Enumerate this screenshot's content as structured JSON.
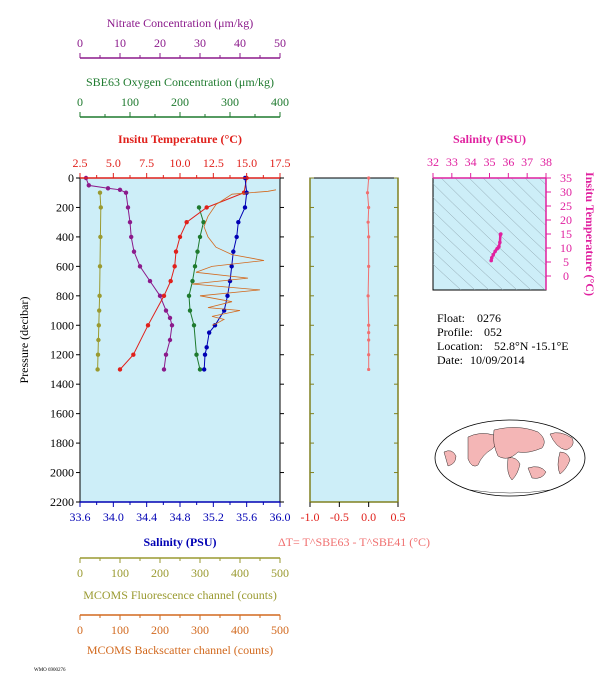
{
  "info": {
    "float_label": "Float:",
    "float_value": "0276",
    "profile_label": "Profile:",
    "profile_value": "052",
    "location_label": "Location:",
    "location_value": "52.8°N  -15.1°E",
    "date_label": "Date:",
    "date_value": "10/09/2014",
    "footer": "WMO 6900276"
  },
  "colors": {
    "nitrate": "#8b1a8b",
    "oxygen": "#1e7a2e",
    "temperature": "#e0201b",
    "salinity": "#0000b4",
    "fluorescence": "#9a9a30",
    "backscatter": "#d2691e",
    "delta_t": "#f07070",
    "ts": "#e0209f",
    "panel_bg": "#cdeef8"
  },
  "chart_data": [
    {
      "type": "line",
      "panel": "main-profile",
      "ylabel": "Pressure (decibar)",
      "ylim": [
        2200,
        0
      ],
      "yticks": [
        0,
        200,
        400,
        600,
        800,
        1000,
        1200,
        1400,
        1600,
        1800,
        2000,
        2200
      ],
      "axes": [
        {
          "key": "nitrate",
          "label": "Nitrate Concentration (μm/kg)",
          "position": "top-1",
          "range": [
            0,
            50
          ],
          "ticks": [
            0,
            10,
            20,
            30,
            40,
            50
          ]
        },
        {
          "key": "oxygen",
          "label": "SBE63 Oxygen Concentration (μm/kg)",
          "position": "top-2",
          "range": [
            0,
            400
          ],
          "ticks": [
            0,
            100,
            200,
            300,
            400
          ]
        },
        {
          "key": "temperature",
          "label": "Insitu Temperature (°C)",
          "position": "top-3",
          "range": [
            2.5,
            17.5
          ],
          "ticks": [
            "2.5",
            "5.0",
            "7.5",
            "10.0",
            "12.5",
            "15.0",
            "17.5"
          ]
        },
        {
          "key": "salinity",
          "label": "Salinity (PSU)",
          "position": "bottom-1",
          "range": [
            33.6,
            36.0
          ],
          "ticks": [
            "33.6",
            "34.0",
            "34.4",
            "34.8",
            "35.2",
            "35.6",
            "36.0"
          ]
        },
        {
          "key": "fluorescence",
          "label": "MCOMS Fluorescence channel (counts)",
          "position": "bottom-2",
          "range": [
            0,
            500
          ],
          "ticks": [
            0,
            100,
            200,
            300,
            400,
            500
          ]
        },
        {
          "key": "backscatter",
          "label": "MCOMS Backscatter channel (counts)",
          "position": "bottom-3",
          "range": [
            0,
            500
          ],
          "ticks": [
            0,
            100,
            200,
            300,
            400,
            500
          ]
        }
      ],
      "series": [
        {
          "key": "nitrate",
          "name": "Nitrate",
          "style": "line+markers",
          "x": [
            1.5,
            2.2,
            7,
            10,
            11.5,
            12,
            12.5,
            12.8,
            13.5,
            15,
            17.5,
            20,
            21.5,
            22.5,
            23,
            22.5,
            21.5,
            21
          ],
          "y": [
            0,
            50,
            70,
            80,
            100,
            200,
            300,
            400,
            500,
            600,
            700,
            800,
            900,
            950,
            1000,
            1100,
            1200,
            1300
          ]
        },
        {
          "key": "oxygen",
          "name": "Oxygen",
          "style": "line+markers",
          "x": [
            238,
            247,
            240,
            235,
            230,
            225,
            218,
            220,
            228,
            233,
            240
          ],
          "y": [
            200,
            300,
            400,
            500,
            600,
            700,
            800,
            900,
            1000,
            1200,
            1300
          ]
        },
        {
          "key": "temperature",
          "name": "Temperature",
          "style": "line+markers",
          "x": [
            15.0,
            14.8,
            12.0,
            10.5,
            10.0,
            9.7,
            9.6,
            9.3,
            8.8,
            7.6,
            6.5,
            5.5
          ],
          "y": [
            0,
            100,
            200,
            300,
            400,
            500,
            600,
            700,
            800,
            1000,
            1200,
            1300
          ]
        },
        {
          "key": "salinity",
          "name": "Salinity",
          "style": "line+markers",
          "x": [
            35.58,
            35.6,
            35.58,
            35.5,
            35.48,
            35.44,
            35.42,
            35.4,
            35.37,
            35.33,
            35.22,
            35.15,
            35.12,
            35.1,
            35.09
          ],
          "y": [
            0,
            100,
            200,
            300,
            400,
            500,
            600,
            700,
            800,
            900,
            1000,
            1050,
            1150,
            1200,
            1300
          ]
        },
        {
          "key": "fluorescence",
          "name": "Fluorescence",
          "style": "line+markers",
          "x": [
            50,
            52,
            51,
            50,
            49,
            48,
            47,
            46,
            45,
            44
          ],
          "y": [
            100,
            200,
            400,
            600,
            800,
            900,
            1000,
            1100,
            1200,
            1300
          ]
        },
        {
          "key": "backscatter",
          "name": "Backscatter",
          "style": "noisy-line",
          "x": [
            490,
            470,
            380,
            340,
            320,
            310,
            320,
            340,
            380,
            460,
            330,
            290,
            420,
            280,
            450,
            300,
            380,
            320,
            400,
            330,
            360,
            340,
            330
          ],
          "y": [
            80,
            90,
            110,
            180,
            260,
            330,
            400,
            470,
            520,
            560,
            600,
            640,
            680,
            720,
            760,
            800,
            840,
            880,
            900,
            940,
            960,
            990,
            1000
          ]
        }
      ]
    },
    {
      "type": "line",
      "panel": "delta-t",
      "xlabel": "ΔT= T^SBE63 - T^SBE41 (°C)",
      "xlim": [
        -1.0,
        0.5
      ],
      "xticks": [
        "-1.0",
        "-0.5",
        "0.0",
        "0.5"
      ],
      "ylim": [
        2200,
        0
      ],
      "x": [
        0.0,
        -0.02,
        0.0,
        -0.01,
        0.0,
        0.0,
        -0.01,
        0.0,
        0.0,
        0.0,
        0.0,
        0.0
      ],
      "y": [
        0,
        100,
        200,
        300,
        400,
        600,
        800,
        1000,
        1050,
        1100,
        1200,
        1300
      ]
    },
    {
      "type": "scatter",
      "panel": "theta-s",
      "title": "Salinity (PSU)",
      "ylabel": "Insitu Temperature (°C)",
      "xlim": [
        32,
        38
      ],
      "xticks": [
        32,
        33,
        34,
        35,
        36,
        37,
        38
      ],
      "ylim": [
        -5,
        35
      ],
      "yticks": [
        0,
        5,
        10,
        15,
        20,
        25,
        30,
        35
      ],
      "grid": "density-contours",
      "x": [
        35.09,
        35.12,
        35.2,
        35.3,
        35.4,
        35.45,
        35.5,
        35.55,
        35.58,
        35.6
      ],
      "y": [
        5.5,
        6.5,
        7.6,
        8.8,
        9.7,
        10.0,
        10.5,
        12.0,
        14.8,
        15.0
      ]
    }
  ]
}
